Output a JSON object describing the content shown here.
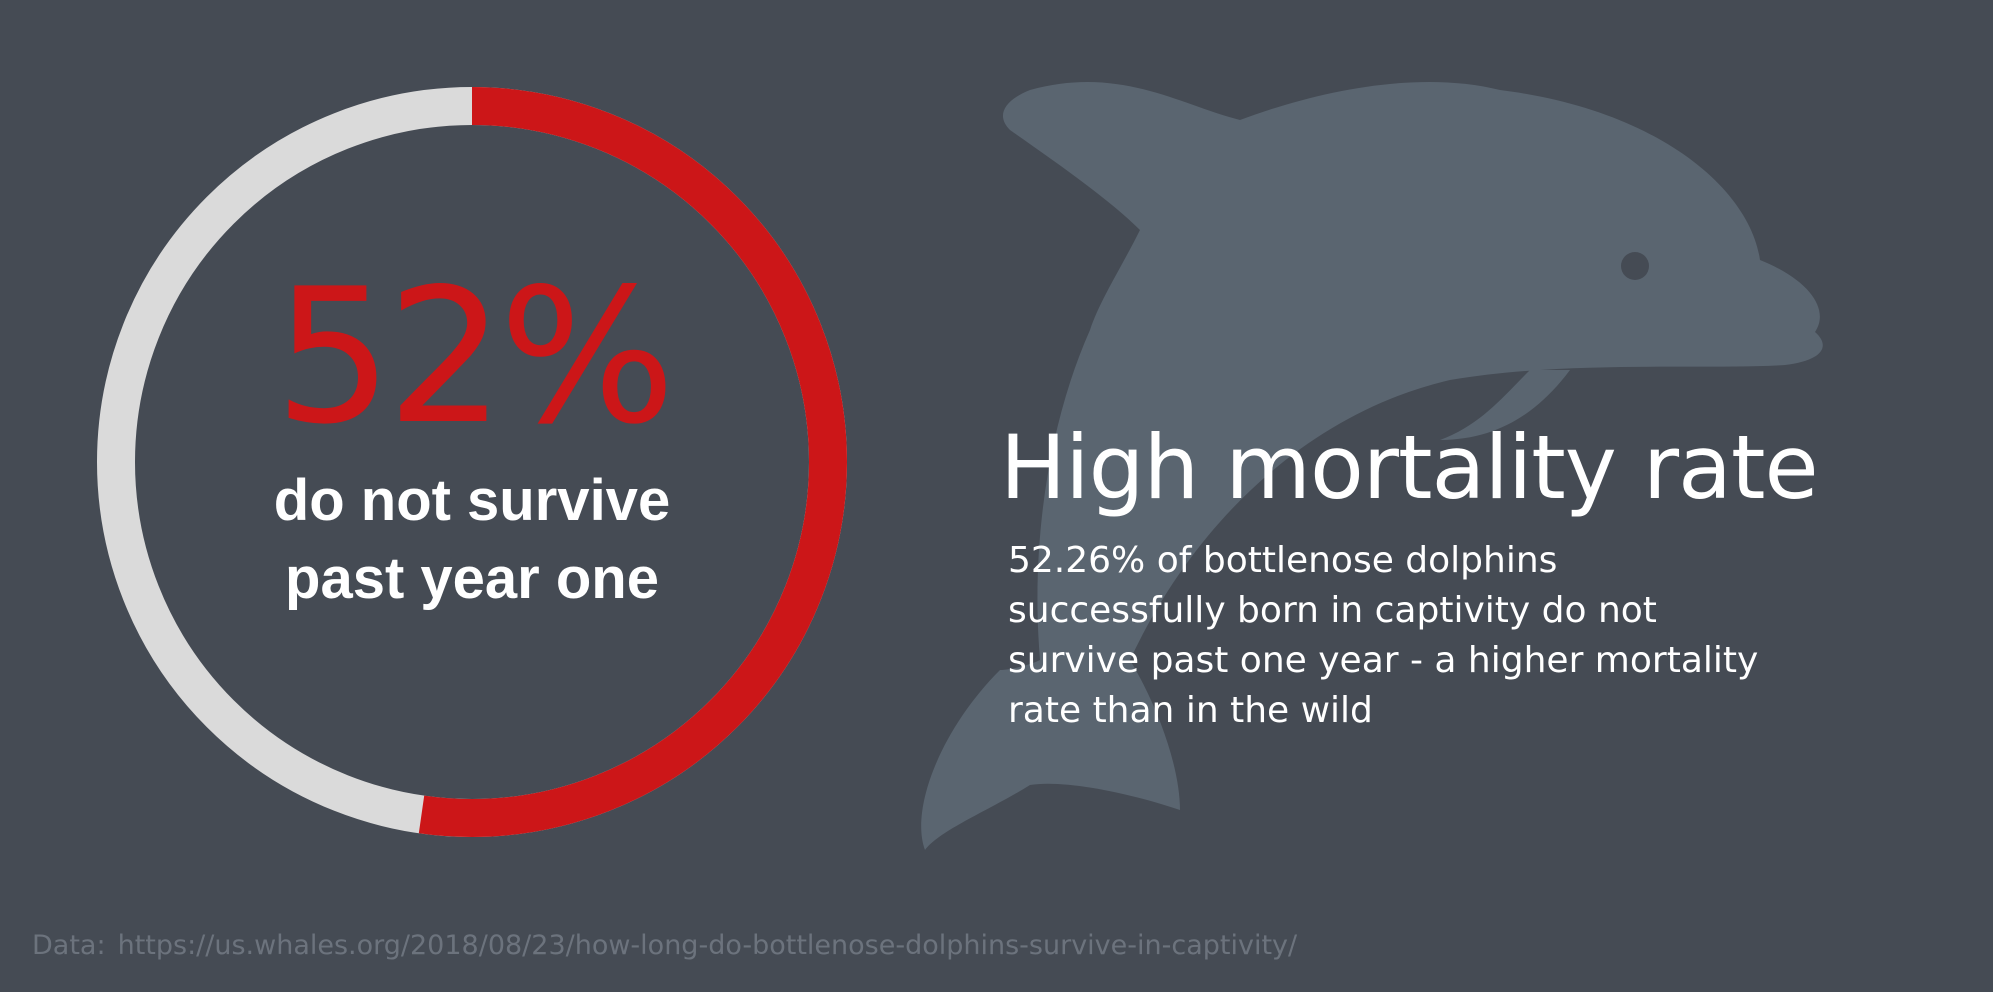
{
  "colors": {
    "background": "#454b54",
    "accent": "#cc1618",
    "track": "#dadada",
    "dolphin": "#5a6570",
    "text": "#ffffff",
    "muted": "#6c737d"
  },
  "icons": {
    "background_illustration": "dolphin-icon"
  },
  "chart_data": {
    "type": "pie",
    "style": "donut",
    "categories": [
      "do not survive past year one",
      "survive"
    ],
    "values": [
      52.26,
      47.74
    ],
    "value_label": "52%",
    "caption_lines": [
      "do not survive",
      "past year one"
    ]
  },
  "headline": "High mortality rate",
  "description_lines": [
    "52.26% of bottlenose dolphins",
    "successfully born in captivity do not",
    "survive past one year - a higher mortality",
    "rate than in the wild"
  ],
  "source": {
    "label": "Data:",
    "url": "https://us.whales.org/2018/08/23/how-long-do-bottlenose-dolphins-survive-in-captivity/"
  }
}
